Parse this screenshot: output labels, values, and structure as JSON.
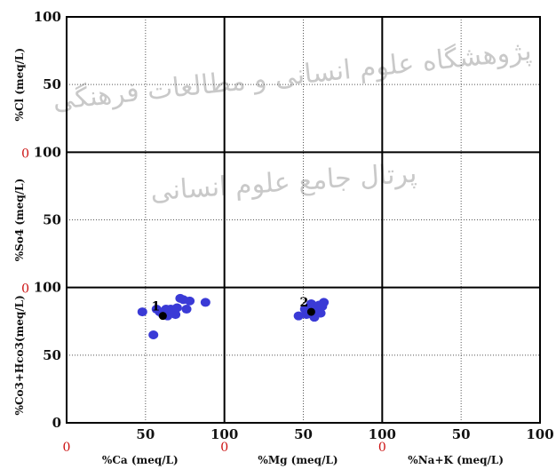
{
  "chart_data": {
    "type": "scatter",
    "title": "",
    "watermark": {
      "line1": "پژوهشگاه علوم انسانی و مطالعات فرهنگی",
      "line2": "پرتال جامع علوم انسانی"
    },
    "colors": {
      "points": "#3a3ad6",
      "sample_means": "#000000",
      "zero_labels": "#cc1111",
      "grid": "#000000"
    },
    "grid_rows": 3,
    "grid_cols": 3,
    "x_axes": [
      {
        "label": "%Ca (meq/L)",
        "ticks": [
          "50",
          "100"
        ],
        "zero": "0"
      },
      {
        "label": "%Mg (meq/L)",
        "ticks": [
          "50",
          "100"
        ],
        "zero": "0"
      },
      {
        "label": "%Na+K (meq/L)",
        "ticks": [
          "50",
          "100"
        ],
        "zero": "0"
      }
    ],
    "y_axes": [
      {
        "label": "%Cl (meq/L)",
        "ticks": [
          "100",
          "50"
        ]
      },
      {
        "label": "%So4 (meq/L)",
        "ticks": [
          "100",
          "50"
        ],
        "zero": "0"
      },
      {
        "label": "%Co3+Hco3(meq/L)",
        "ticks": [
          "100",
          "50",
          "0"
        ],
        "zero": "0"
      }
    ],
    "xlim": [
      0,
      100
    ],
    "ylim": [
      0,
      100
    ],
    "series": [
      {
        "col": 0,
        "row": 2,
        "points": [
          [
            48,
            82
          ],
          [
            55,
            65
          ],
          [
            57,
            84
          ],
          [
            59,
            82
          ],
          [
            61,
            80
          ],
          [
            63,
            84
          ],
          [
            64,
            79
          ],
          [
            66,
            84
          ],
          [
            67,
            81
          ],
          [
            69,
            80
          ],
          [
            70,
            85
          ],
          [
            72,
            92
          ],
          [
            74,
            91
          ],
          [
            76,
            84
          ],
          [
            78,
            90
          ],
          [
            88,
            89
          ]
        ]
      },
      {
        "col": 1,
        "row": 2,
        "points": [
          [
            47,
            79
          ],
          [
            51,
            84
          ],
          [
            52,
            80
          ],
          [
            54,
            86
          ],
          [
            55,
            88
          ],
          [
            56,
            84
          ],
          [
            57,
            78
          ],
          [
            58,
            85
          ],
          [
            59,
            83
          ],
          [
            60,
            87
          ],
          [
            61,
            81
          ],
          [
            62,
            86
          ],
          [
            63,
            89
          ]
        ]
      }
    ],
    "sample_means": [
      {
        "label": "1",
        "col": 0,
        "row": 2,
        "x": 61,
        "y": 79
      },
      {
        "label": "2",
        "col": 1,
        "row": 2,
        "x": 55,
        "y": 82
      }
    ]
  }
}
